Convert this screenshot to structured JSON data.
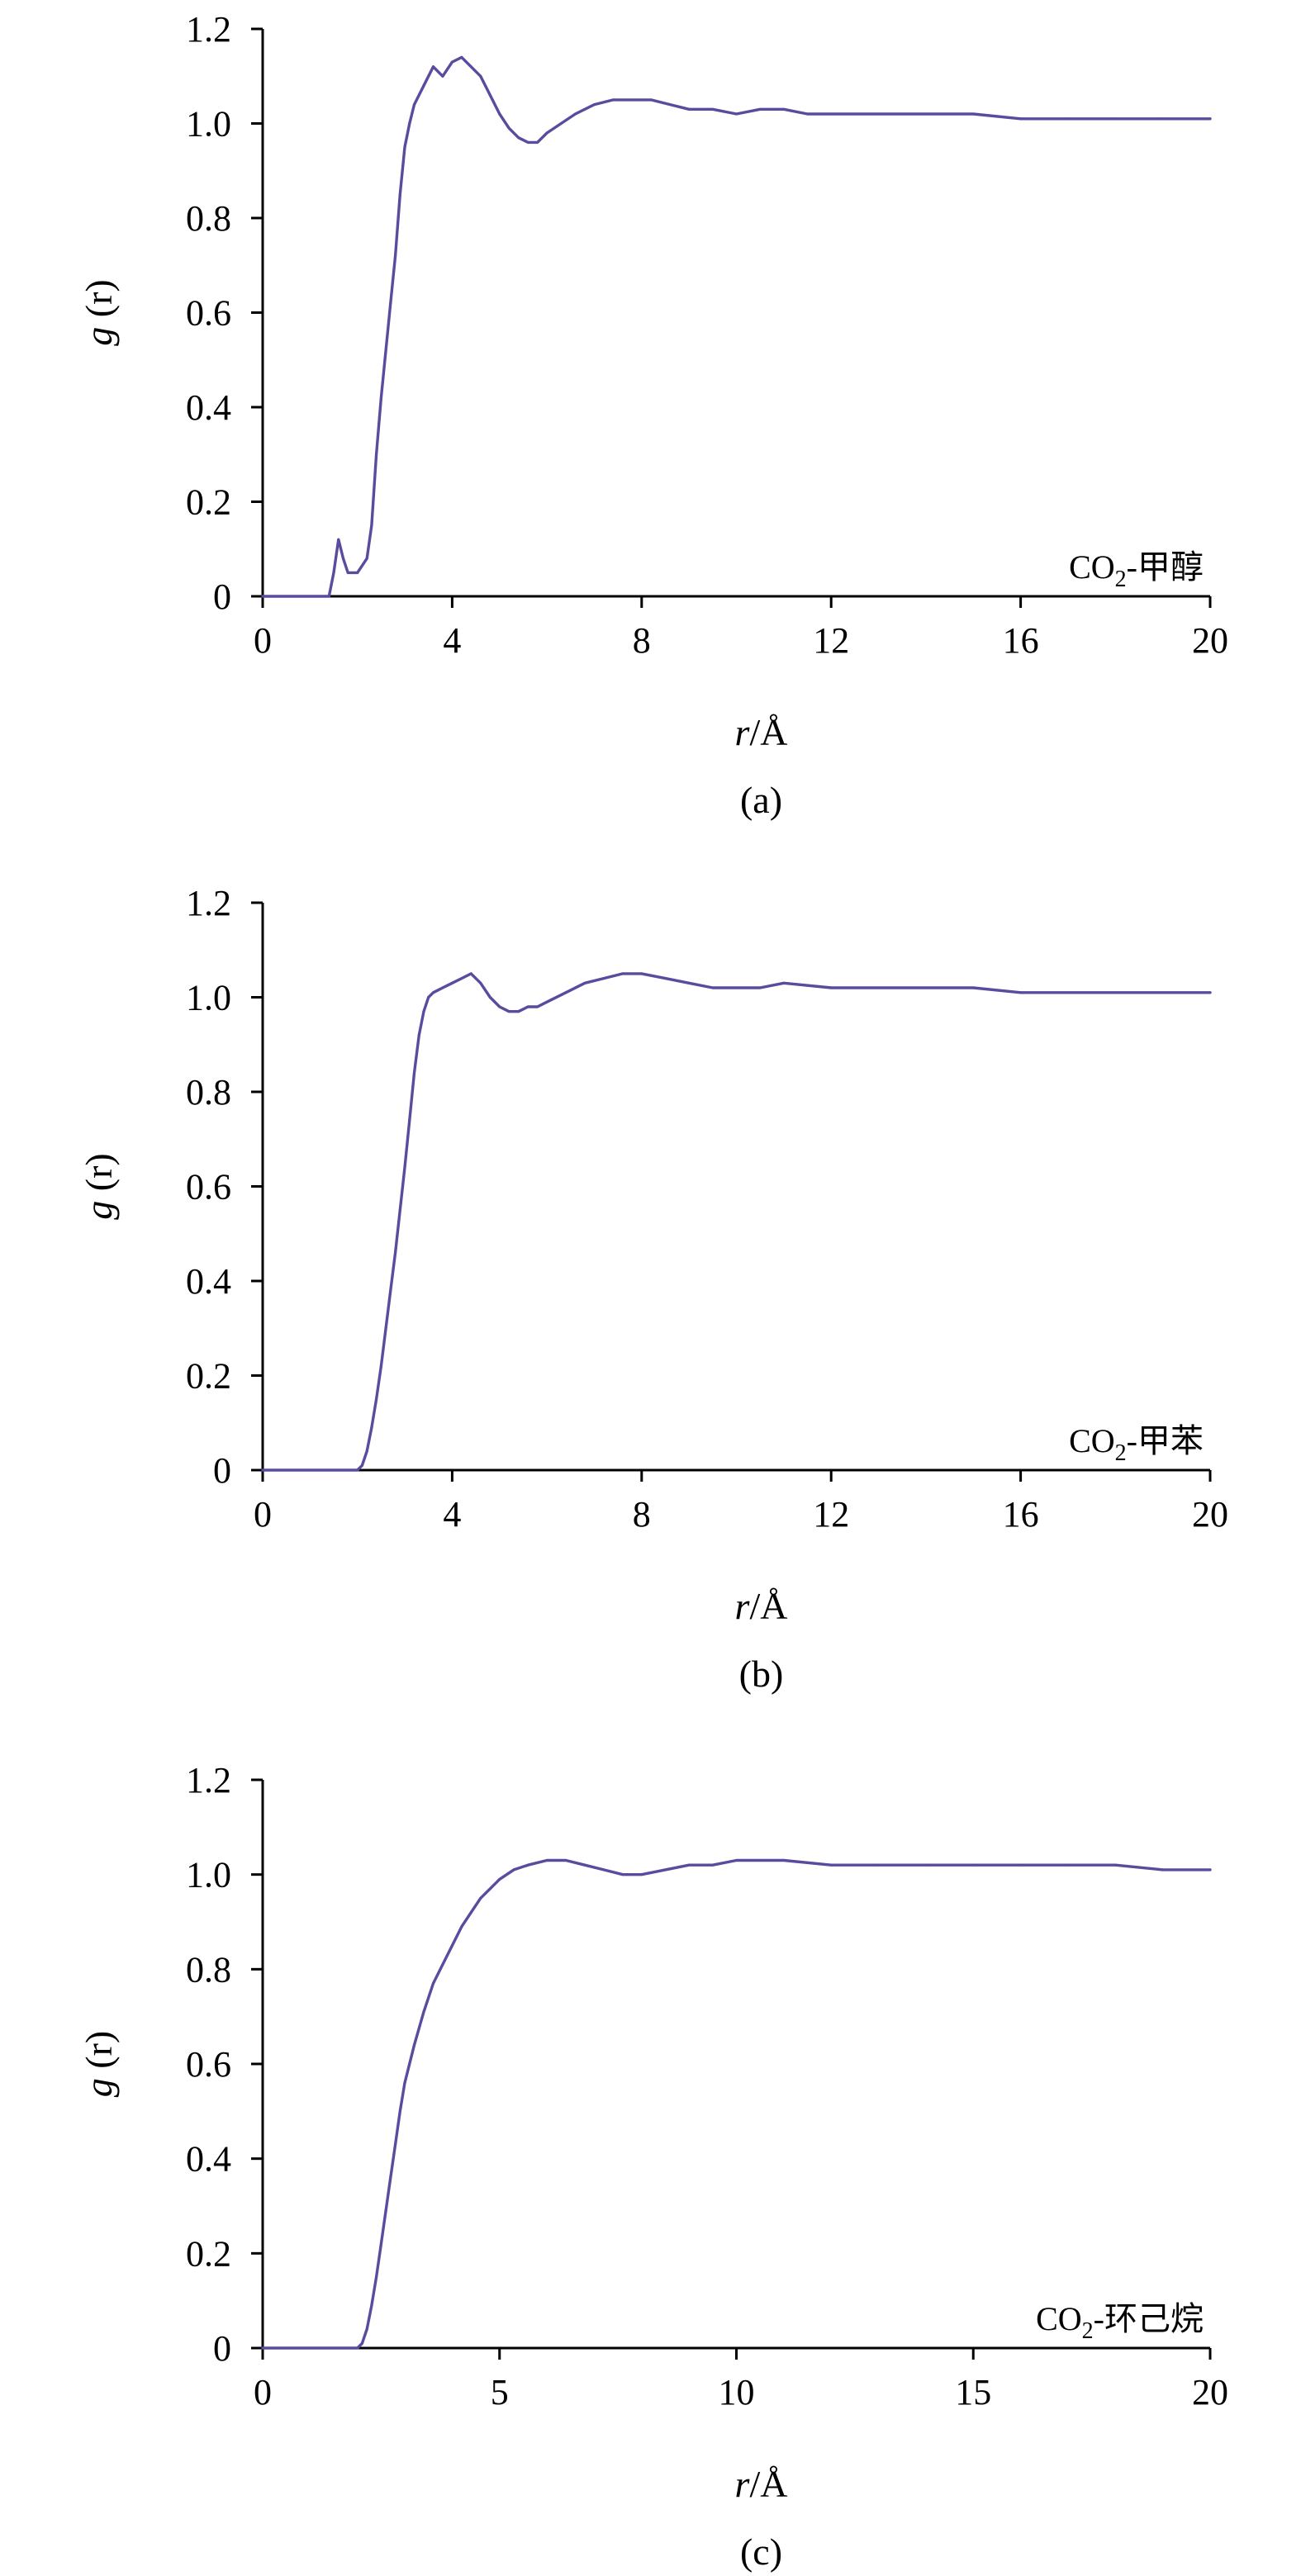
{
  "colors": {
    "series": "#5b4a9e",
    "axis": "#000000"
  },
  "chart_data": [
    {
      "id": "a",
      "type": "line",
      "caption": "(a)",
      "xlabel_italic": "r",
      "xlabel_rest": "/Å",
      "ylabel_italic": "g",
      "ylabel_rest": " (r)",
      "xlim": [
        0,
        20
      ],
      "ylim": [
        0,
        1.2
      ],
      "xticks": [
        0,
        4,
        8,
        12,
        16,
        20
      ],
      "xtick_labels": [
        "0",
        "4",
        "8",
        "12",
        "16",
        "20"
      ],
      "yticks": [
        0,
        0.2,
        0.4,
        0.6,
        0.8,
        1.0,
        1.2
      ],
      "ytick_labels": [
        "0",
        "0.2",
        "0.4",
        "0.6",
        "0.8",
        "1.0",
        "1.2"
      ],
      "grid": false,
      "legend": {
        "text_main": "CO",
        "text_sub": "2",
        "text_tail": "-甲醇",
        "position": "bottom-right"
      },
      "series": [
        {
          "x": [
            0,
            1.0,
            1.4,
            1.5,
            1.6,
            1.7,
            1.8,
            2.0,
            2.2,
            2.3,
            2.4,
            2.5,
            2.6,
            2.7,
            2.8,
            2.9,
            3.0,
            3.1,
            3.2,
            3.4,
            3.6,
            3.8,
            4.0,
            4.2,
            4.4,
            4.6,
            4.8,
            5.0,
            5.2,
            5.4,
            5.6,
            5.8,
            6.0,
            6.3,
            6.6,
            7.0,
            7.4,
            7.8,
            8.2,
            8.6,
            9.0,
            9.5,
            10.0,
            10.5,
            11.0,
            11.5,
            12.0,
            13.0,
            14.0,
            15.0,
            16.0,
            17.0,
            18.0,
            19.0,
            20.0
          ],
          "y": [
            0,
            0,
            0,
            0.05,
            0.12,
            0.08,
            0.05,
            0.05,
            0.08,
            0.15,
            0.3,
            0.42,
            0.52,
            0.62,
            0.72,
            0.85,
            0.95,
            1.0,
            1.04,
            1.08,
            1.12,
            1.1,
            1.13,
            1.14,
            1.12,
            1.1,
            1.06,
            1.02,
            0.99,
            0.97,
            0.96,
            0.96,
            0.98,
            1.0,
            1.02,
            1.04,
            1.05,
            1.05,
            1.05,
            1.04,
            1.03,
            1.03,
            1.02,
            1.03,
            1.03,
            1.02,
            1.02,
            1.02,
            1.02,
            1.02,
            1.01,
            1.01,
            1.01,
            1.01,
            1.01
          ]
        }
      ]
    },
    {
      "id": "b",
      "type": "line",
      "caption": "(b)",
      "xlabel_italic": "r",
      "xlabel_rest": "/Å",
      "ylabel_italic": "g",
      "ylabel_rest": " (r)",
      "xlim": [
        0,
        20
      ],
      "ylim": [
        0,
        1.2
      ],
      "xticks": [
        0,
        4,
        8,
        12,
        16,
        20
      ],
      "xtick_labels": [
        "0",
        "4",
        "8",
        "12",
        "16",
        "20"
      ],
      "yticks": [
        0,
        0.2,
        0.4,
        0.6,
        0.8,
        1.0,
        1.2
      ],
      "ytick_labels": [
        "0",
        "0.2",
        "0.4",
        "0.6",
        "0.8",
        "1.0",
        "1.2"
      ],
      "grid": false,
      "legend": {
        "text_main": "CO",
        "text_sub": "2",
        "text_tail": "-甲苯",
        "position": "bottom-right"
      },
      "series": [
        {
          "x": [
            0,
            1.5,
            2.0,
            2.1,
            2.2,
            2.3,
            2.4,
            2.5,
            2.6,
            2.7,
            2.8,
            2.9,
            3.0,
            3.1,
            3.2,
            3.3,
            3.4,
            3.5,
            3.6,
            3.8,
            4.0,
            4.2,
            4.4,
            4.6,
            4.8,
            5.0,
            5.2,
            5.4,
            5.6,
            5.8,
            6.0,
            6.4,
            6.8,
            7.2,
            7.6,
            8.0,
            8.5,
            9.0,
            9.5,
            10.0,
            10.5,
            11.0,
            12.0,
            13.0,
            14.0,
            15.0,
            16.0,
            17.0,
            18.0,
            19.0,
            20.0
          ],
          "y": [
            0,
            0,
            0,
            0.01,
            0.04,
            0.09,
            0.15,
            0.22,
            0.3,
            0.38,
            0.46,
            0.55,
            0.64,
            0.74,
            0.84,
            0.92,
            0.97,
            1.0,
            1.01,
            1.02,
            1.03,
            1.04,
            1.05,
            1.03,
            1.0,
            0.98,
            0.97,
            0.97,
            0.98,
            0.98,
            0.99,
            1.01,
            1.03,
            1.04,
            1.05,
            1.05,
            1.04,
            1.03,
            1.02,
            1.02,
            1.02,
            1.03,
            1.02,
            1.02,
            1.02,
            1.02,
            1.01,
            1.01,
            1.01,
            1.01,
            1.01
          ]
        }
      ]
    },
    {
      "id": "c",
      "type": "line",
      "caption": "(c)",
      "xlabel_italic": "r",
      "xlabel_rest": "/Å",
      "ylabel_italic": "g",
      "ylabel_rest": " (r)",
      "xlim": [
        0,
        20
      ],
      "ylim": [
        0,
        1.2
      ],
      "xticks": [
        0,
        5,
        10,
        15,
        20
      ],
      "xtick_labels": [
        "0",
        "5",
        "10",
        "15",
        "20"
      ],
      "yticks": [
        0,
        0.2,
        0.4,
        0.6,
        0.8,
        1.0,
        1.2
      ],
      "ytick_labels": [
        "0",
        "0.2",
        "0.4",
        "0.6",
        "0.8",
        "1.0",
        "1.2"
      ],
      "grid": false,
      "legend": {
        "text_main": "CO",
        "text_sub": "2",
        "text_tail": "-环己烷",
        "position": "bottom-right"
      },
      "series": [
        {
          "x": [
            0,
            1.5,
            2.0,
            2.1,
            2.2,
            2.3,
            2.4,
            2.5,
            2.6,
            2.7,
            2.8,
            2.9,
            3.0,
            3.2,
            3.4,
            3.6,
            3.8,
            4.0,
            4.2,
            4.4,
            4.6,
            4.8,
            5.0,
            5.3,
            5.6,
            6.0,
            6.4,
            6.8,
            7.2,
            7.6,
            8.0,
            8.5,
            9.0,
            9.5,
            10.0,
            10.5,
            11.0,
            12.0,
            13.0,
            14.0,
            15.0,
            16.0,
            17.0,
            18.0,
            19.0,
            20.0
          ],
          "y": [
            0,
            0,
            0,
            0.01,
            0.04,
            0.09,
            0.15,
            0.22,
            0.29,
            0.36,
            0.43,
            0.5,
            0.56,
            0.64,
            0.71,
            0.77,
            0.81,
            0.85,
            0.89,
            0.92,
            0.95,
            0.97,
            0.99,
            1.01,
            1.02,
            1.03,
            1.03,
            1.02,
            1.01,
            1.0,
            1.0,
            1.01,
            1.02,
            1.02,
            1.03,
            1.03,
            1.03,
            1.02,
            1.02,
            1.02,
            1.02,
            1.02,
            1.02,
            1.02,
            1.01,
            1.01
          ]
        }
      ]
    }
  ]
}
